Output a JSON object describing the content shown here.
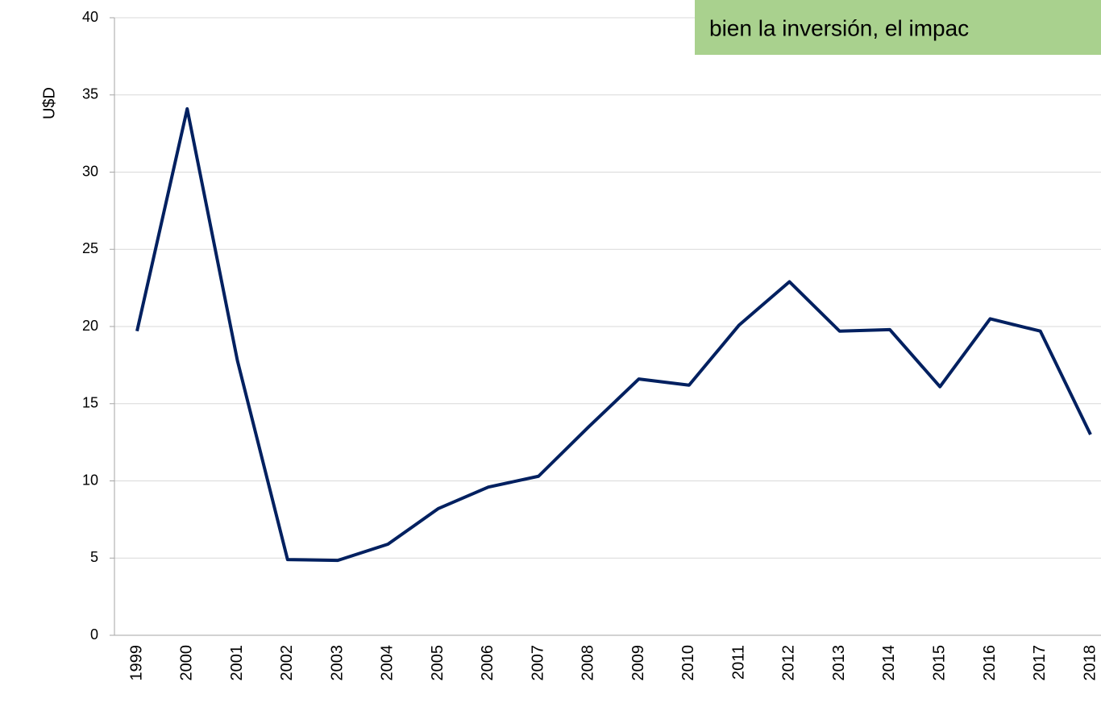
{
  "chart_data": {
    "type": "line",
    "y_label": "U$D",
    "annotation": "bien la inversión, el impac",
    "categories": [
      "1999",
      "2000",
      "2001",
      "2002",
      "2003",
      "2004",
      "2005",
      "2006",
      "2007",
      "2008",
      "2009",
      "2010",
      "2011",
      "2012",
      "2013",
      "2014",
      "2015",
      "2016",
      "2017",
      "2018"
    ],
    "series": [
      {
        "color": "#002060",
        "values": [
          19.7,
          34.1,
          17.8,
          4.9,
          4.85,
          5.9,
          8.2,
          9.6,
          10.3,
          13.5,
          16.6,
          16.2,
          20.1,
          22.9,
          19.7,
          19.8,
          16.1,
          20.5,
          19.7,
          13.0
        ]
      }
    ],
    "ylim": [
      0,
      40
    ],
    "yticks": [
      0,
      5,
      10,
      15,
      20,
      25,
      30,
      35,
      40
    ],
    "grid": true,
    "annotation_color": "#a9d18e"
  }
}
